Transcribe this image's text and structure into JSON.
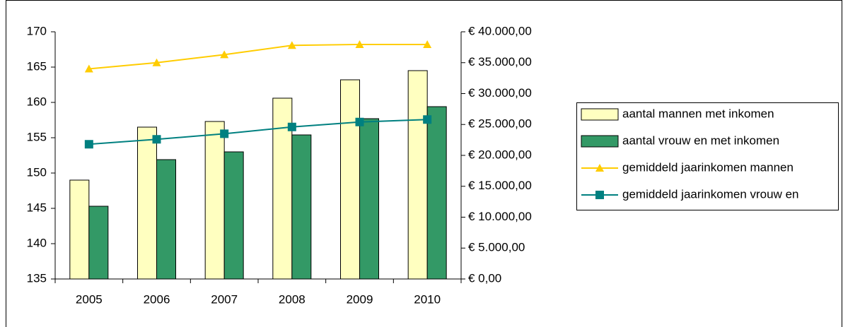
{
  "chart_data": {
    "type": "bar_line",
    "categories": [
      "2005",
      "2006",
      "2007",
      "2008",
      "2009",
      "2010"
    ],
    "series": [
      {
        "name": "aantal mannen met inkomen",
        "color": "#ffffc0",
        "type": "bar",
        "values": [
          149.0,
          156.5,
          157.3,
          160.6,
          163.2,
          164.5
        ]
      },
      {
        "name": "aantal vrouw en met inkomen",
        "color": "#339966",
        "type": "bar",
        "values": [
          145.3,
          151.9,
          153.0,
          155.4,
          157.7,
          159.4
        ]
      },
      {
        "name": "gemiddeld jaarinkomen mannen",
        "color": "#ffcc00",
        "type": "line",
        "marker": "triangle",
        "axis": "y2",
        "values": [
          34000,
          35000,
          36300,
          37800,
          37950,
          37950
        ]
      },
      {
        "name": "gemiddeld jaarinkomen vrouw en",
        "color": "#008080",
        "type": "line",
        "marker": "square",
        "axis": "y2",
        "values": [
          21800,
          22600,
          23500,
          24600,
          25400,
          25800
        ]
      }
    ],
    "ylim": [
      135,
      170
    ],
    "yticks": [
      135,
      140,
      145,
      150,
      155,
      160,
      165,
      170
    ],
    "y2lim": [
      0,
      40000
    ],
    "y2ticks": [
      {
        "value": 0,
        "label": "€ 0,00"
      },
      {
        "value": 5000,
        "label": "€ 5.000,00"
      },
      {
        "value": 10000,
        "label": "€ 10.000,00"
      },
      {
        "value": 15000,
        "label": "€ 15.000,00"
      },
      {
        "value": 20000,
        "label": "€ 20.000,00"
      },
      {
        "value": 25000,
        "label": "€ 25.000,00"
      },
      {
        "value": 30000,
        "label": "€ 30.000,00"
      },
      {
        "value": 35000,
        "label": "€ 35.000,00"
      },
      {
        "value": 40000,
        "label": "€ 40.000,00"
      }
    ],
    "grid": false,
    "legend": "right"
  }
}
